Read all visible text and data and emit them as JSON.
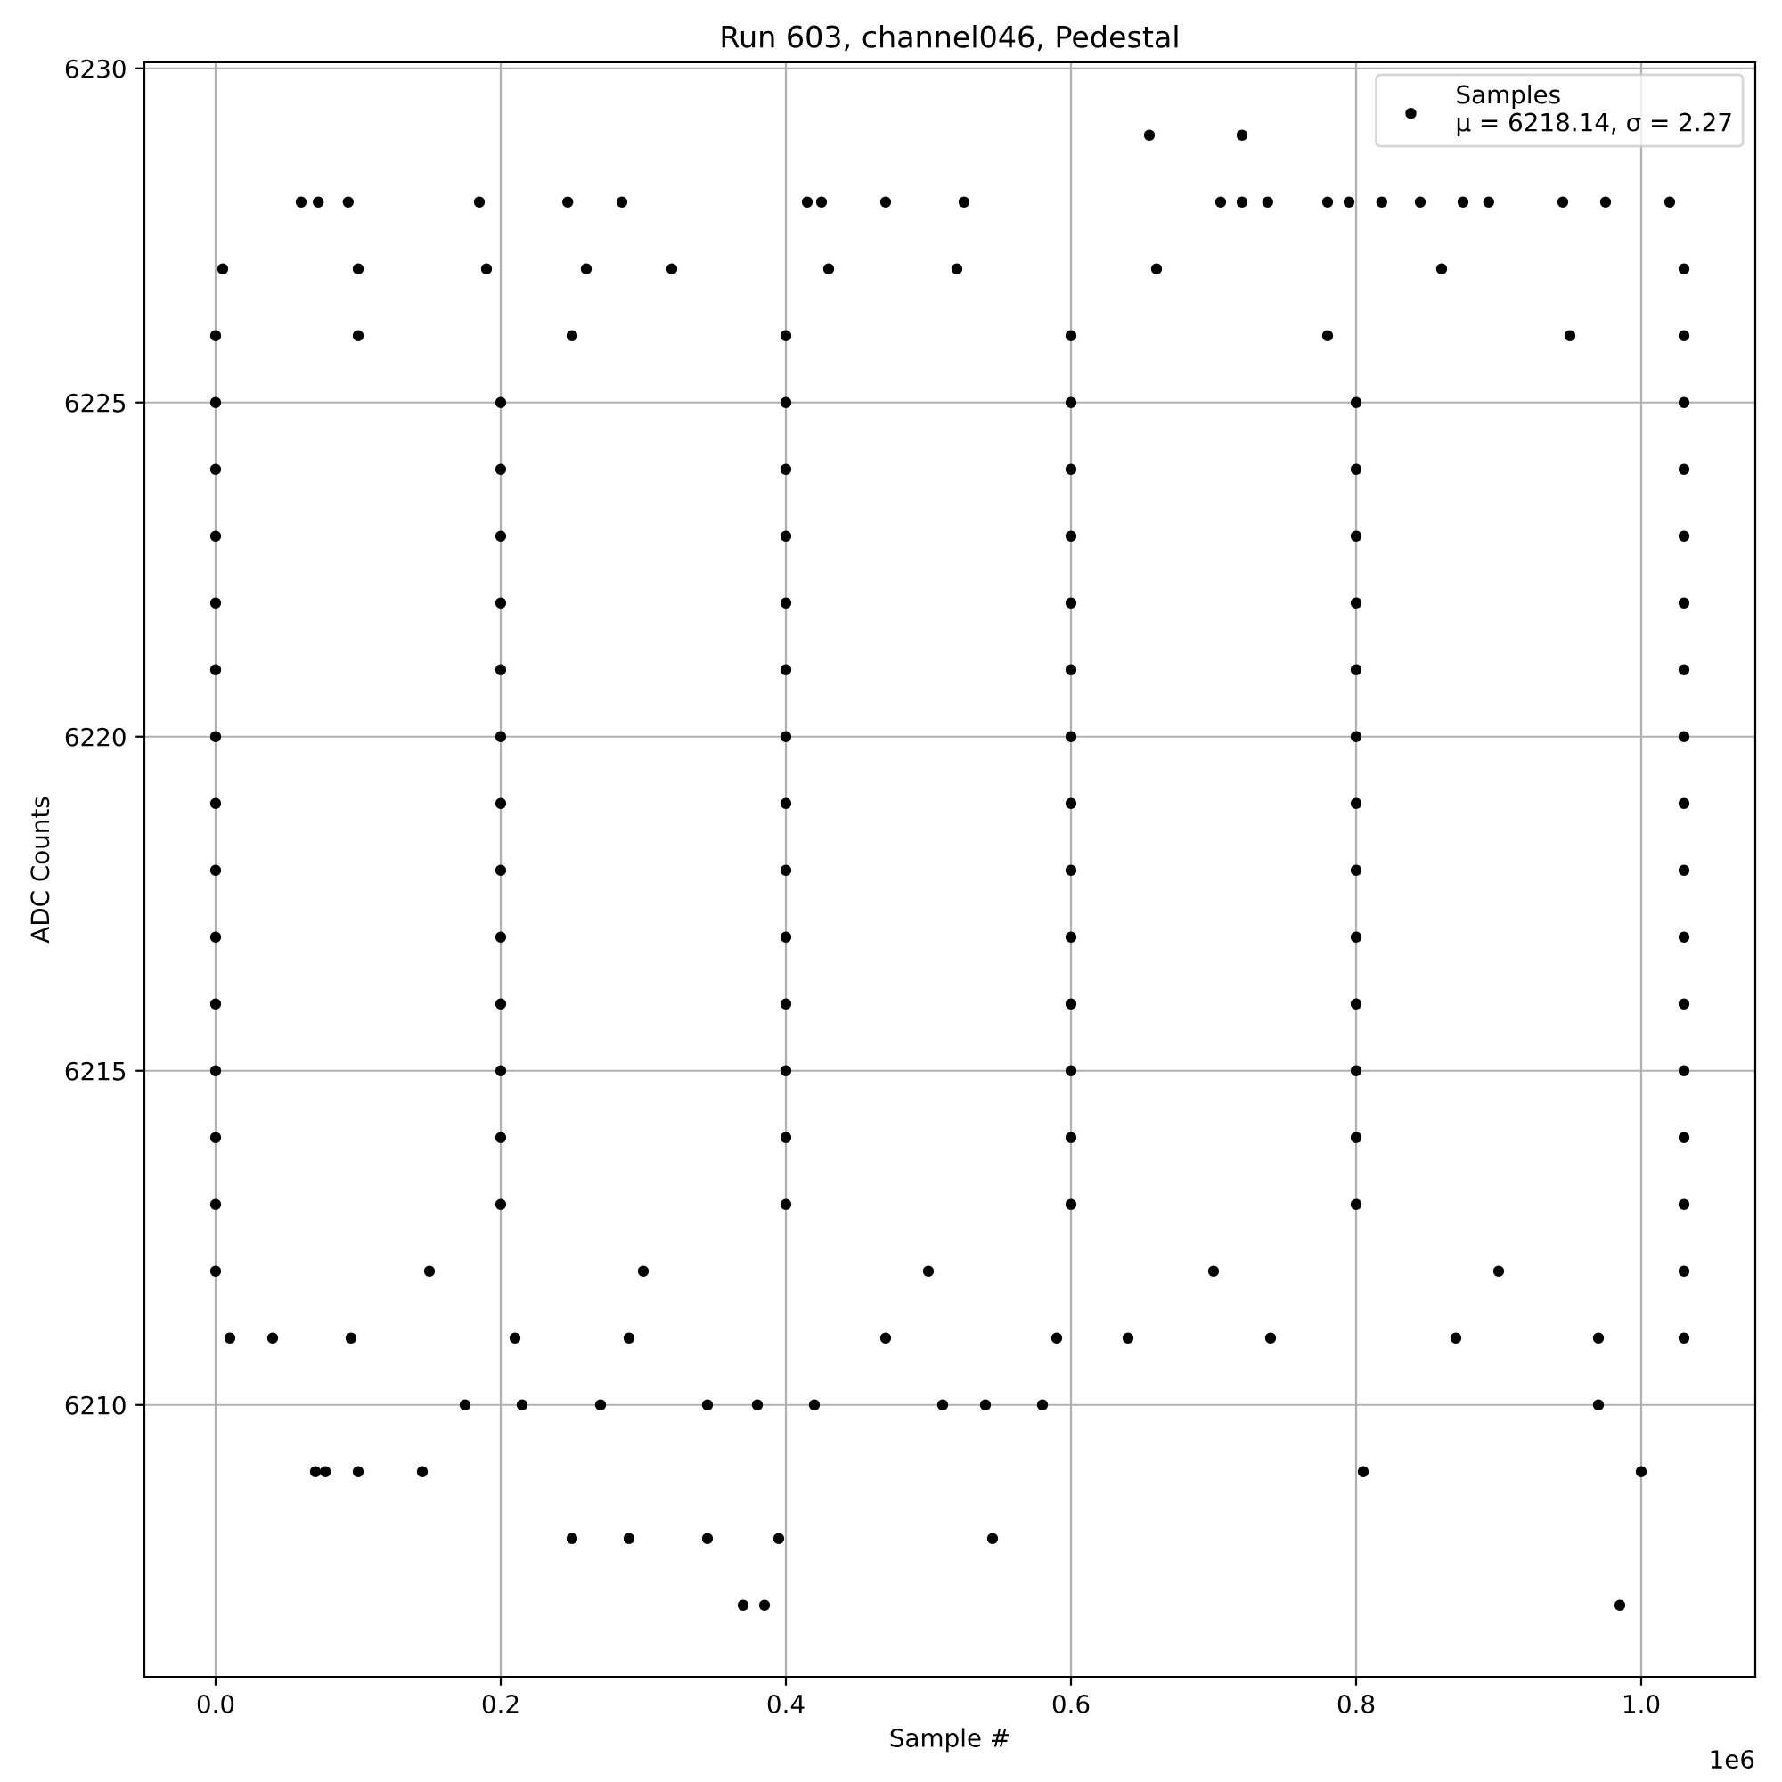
{
  "chart_data": {
    "type": "scatter",
    "title": "Run 603, channel046, Pedestal",
    "xlabel": "Sample #",
    "ylabel": "ADC Counts",
    "annotations": [
      "1e6"
    ],
    "series": [
      {
        "name": "Samples\nμ = 6218.14, σ = 2.27",
        "color": "#000000",
        "x": [
          0,
          0.2,
          0.4,
          0.6,
          0.8,
          1.03,
          0,
          0.2,
          0.4,
          0.6,
          0.8,
          1.03,
          0,
          0.2,
          0.4,
          0.6,
          0.8,
          1.03,
          0,
          0.2,
          0.4,
          0.6,
          0.8,
          1.03,
          0,
          0.2,
          0.4,
          0.6,
          0.8,
          1.03,
          0,
          0.2,
          0.4,
          0.6,
          0.8,
          1.03,
          0,
          0.2,
          0.4,
          0.6,
          0.8,
          1.03,
          0,
          0.2,
          0.4,
          0.6,
          0.8,
          1.03,
          0,
          0.2,
          0.4,
          0.6,
          0.8,
          1.03,
          0,
          0.2,
          0.4,
          0.6,
          0.8,
          1.03,
          0,
          0.2,
          0.4,
          0.6,
          0.8,
          1.03,
          0,
          0.2,
          0.4,
          0.6,
          0.8,
          1.03,
          0,
          0.2,
          0.4,
          0.6,
          0.8,
          1.03,
          0,
          0.15,
          0.3,
          0.5,
          0.7,
          0.9,
          1.03,
          0,
          0.1,
          0.25,
          0.4,
          0.6,
          0.78,
          0.95,
          1.03,
          0.005,
          0.1,
          0.19,
          0.26,
          0.32,
          0.43,
          0.52,
          0.66,
          0.86,
          1.03,
          0.01,
          0.04,
          0.095,
          0.21,
          0.29,
          0.47,
          0.59,
          0.64,
          0.74,
          0.87,
          0.97,
          1.03,
          0.07,
          0.077,
          0.1,
          0.145,
          0.175,
          0.215,
          0.27,
          0.345,
          0.38,
          0.42,
          0.51,
          0.54,
          0.58,
          0.805,
          0.97,
          1.0,
          0.25,
          0.29,
          0.345,
          0.395,
          0.545,
          0.37,
          0.385,
          0.985,
          0.06,
          0.072,
          0.093,
          0.185,
          0.247,
          0.285,
          0.415,
          0.425,
          0.47,
          0.525,
          0.705,
          0.72,
          0.738,
          0.78,
          0.795,
          0.818,
          0.845,
          0.875,
          0.893,
          0.945,
          0.975,
          1.02,
          0.655,
          0.72
        ],
        "values": [
          6225,
          6225,
          6225,
          6225,
          6225,
          6225,
          6224,
          6224,
          6224,
          6224,
          6224,
          6224,
          6223,
          6223,
          6223,
          6223,
          6223,
          6223,
          6222,
          6222,
          6222,
          6222,
          6222,
          6222,
          6221,
          6221,
          6221,
          6221,
          6221,
          6221,
          6220,
          6220,
          6220,
          6220,
          6220,
          6220,
          6219,
          6219,
          6219,
          6219,
          6219,
          6219,
          6218,
          6218,
          6218,
          6218,
          6218,
          6218,
          6217,
          6217,
          6217,
          6217,
          6217,
          6217,
          6216,
          6216,
          6216,
          6216,
          6216,
          6216,
          6215,
          6215,
          6215,
          6215,
          6215,
          6215,
          6214,
          6214,
          6214,
          6214,
          6214,
          6214,
          6213,
          6213,
          6213,
          6213,
          6213,
          6213,
          6212,
          6212,
          6212,
          6212,
          6212,
          6212,
          6212,
          6226,
          6226,
          6226,
          6226,
          6226,
          6226,
          6226,
          6226,
          6227,
          6227,
          6227,
          6227,
          6227,
          6227,
          6227,
          6227,
          6227,
          6227,
          6211,
          6211,
          6211,
          6211,
          6211,
          6211,
          6211,
          6211,
          6211,
          6211,
          6211,
          6211,
          6209,
          6209,
          6209,
          6209,
          6210,
          6210,
          6210,
          6210,
          6210,
          6210,
          6210,
          6210,
          6210,
          6209,
          6210,
          6209,
          6208,
          6208,
          6208,
          6208,
          6208,
          6207,
          6207,
          6207,
          6228,
          6228,
          6228,
          6228,
          6228,
          6228,
          6228,
          6228,
          6228,
          6228,
          6228,
          6228,
          6228,
          6228,
          6228,
          6228,
          6228,
          6228,
          6228,
          6228,
          6228,
          6228,
          6229,
          6229
        ]
      }
    ],
    "xlim": [
      -0.05,
      1.08
    ],
    "xticks": [
      {
        "value": 0,
        "label": "0.0"
      },
      0.2,
      0.4,
      0.6,
      0.8,
      {
        "value": 1,
        "label": "1.0"
      }
    ],
    "ylim": [
      6205.93,
      6230.09
    ],
    "yticks": [
      6210,
      6215,
      6220,
      6225,
      6230
    ],
    "grid": true,
    "legend": "top right",
    "marker": "circle"
  }
}
